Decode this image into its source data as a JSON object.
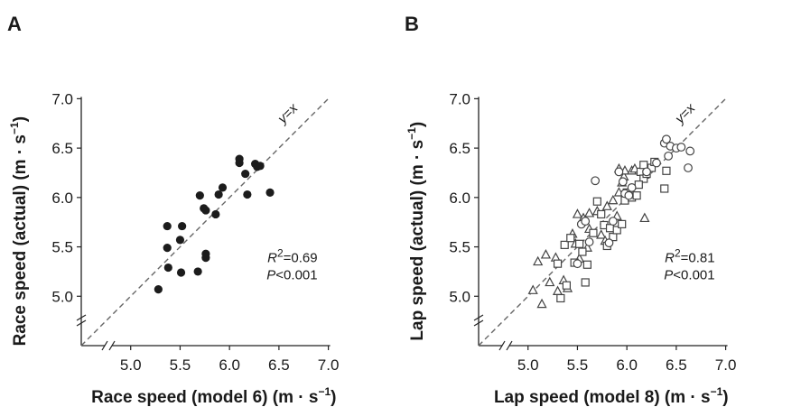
{
  "chart_data": [
    {
      "panel": "A",
      "type": "scatter",
      "xlabel": "Race speed (model 6) (m · s",
      "xlabel_sup": "−1",
      "xlabel_end": ")",
      "ylabel": "Race speed (actual) (m · s",
      "ylabel_sup": "−1",
      "ylabel_end": ")",
      "xlim": [
        4.5,
        7.0
      ],
      "ylim": [
        4.5,
        7.0
      ],
      "x_ticks": [
        "5.0",
        "5.5",
        "6.0",
        "6.5",
        "7.0"
      ],
      "y_ticks": [
        "5.0",
        "5.5",
        "6.0",
        "6.5",
        "7.0"
      ],
      "reference_line": "y=x",
      "stat_r2_label": "R",
      "stat_r2_sup": "2",
      "stat_r2_value": "=0.69",
      "stat_p_label": "P",
      "stat_p_value": "<0.001",
      "grid": false,
      "series": [
        {
          "marker": "filled-circle",
          "points": [
            [
              5.28,
              5.07
            ],
            [
              5.37,
              5.71
            ],
            [
              5.37,
              5.49
            ],
            [
              5.38,
              5.29
            ],
            [
              5.5,
              5.57
            ],
            [
              5.52,
              5.71
            ],
            [
              5.51,
              5.24
            ],
            [
              5.68,
              5.25
            ],
            [
              5.7,
              6.02
            ],
            [
              5.74,
              5.89
            ],
            [
              5.76,
              5.87
            ],
            [
              5.76,
              5.43
            ],
            [
              5.76,
              5.39
            ],
            [
              5.86,
              5.83
            ],
            [
              5.89,
              6.03
            ],
            [
              5.93,
              6.1
            ],
            [
              6.1,
              6.39
            ],
            [
              6.1,
              6.35
            ],
            [
              6.16,
              6.24
            ],
            [
              6.18,
              6.03
            ],
            [
              6.26,
              6.34
            ],
            [
              6.28,
              6.31
            ],
            [
              6.31,
              6.32
            ],
            [
              6.41,
              6.05
            ]
          ]
        }
      ]
    },
    {
      "panel": "B",
      "type": "scatter",
      "xlabel": "Lap speed (model 8) (m · s",
      "xlabel_sup": "−1",
      "xlabel_end": ")",
      "ylabel": "Lap speed (actual) (m · s",
      "ylabel_sup": "−1",
      "ylabel_end": ")",
      "xlim": [
        4.5,
        7.0
      ],
      "ylim": [
        4.5,
        7.0
      ],
      "x_ticks": [
        "5.0",
        "5.5",
        "6.0",
        "6.5",
        "7.0"
      ],
      "y_ticks": [
        "5.0",
        "5.5",
        "6.0",
        "6.5",
        "7.0"
      ],
      "reference_line": "y=x",
      "stat_r2_label": "R",
      "stat_r2_sup": "2",
      "stat_r2_value": "=0.81",
      "stat_p_label": "P",
      "stat_p_value": "<0.001",
      "grid": false,
      "series": [
        {
          "marker": "open-triangle",
          "points": [
            [
              5.05,
              5.06
            ],
            [
              5.1,
              5.35
            ],
            [
              5.14,
              4.92
            ],
            [
              5.18,
              5.42
            ],
            [
              5.22,
              5.14
            ],
            [
              5.28,
              5.39
            ],
            [
              5.3,
              5.05
            ],
            [
              5.36,
              5.16
            ],
            [
              5.4,
              5.08
            ],
            [
              5.45,
              5.63
            ],
            [
              5.48,
              5.53
            ],
            [
              5.5,
              5.83
            ],
            [
              5.52,
              5.38
            ],
            [
              5.56,
              5.79
            ],
            [
              5.6,
              5.49
            ],
            [
              5.62,
              5.68
            ],
            [
              5.7,
              5.86
            ],
            [
              5.74,
              5.62
            ],
            [
              5.78,
              5.56
            ],
            [
              5.8,
              5.91
            ],
            [
              5.86,
              5.97
            ],
            [
              5.92,
              6.29
            ],
            [
              5.92,
              6.05
            ],
            [
              5.95,
              6.15
            ],
            [
              5.97,
              6.21
            ],
            [
              5.98,
              6.27
            ],
            [
              6.05,
              6.27
            ],
            [
              6.18,
              5.79
            ],
            [
              6.18,
              6.23
            ],
            [
              6.08,
              6.29
            ],
            [
              5.62,
              5.84
            ],
            [
              5.9,
              5.81
            ]
          ]
        },
        {
          "marker": "open-square",
          "points": [
            [
              5.3,
              5.33
            ],
            [
              5.33,
              4.98
            ],
            [
              5.37,
              5.52
            ],
            [
              5.39,
              5.11
            ],
            [
              5.43,
              5.59
            ],
            [
              5.47,
              5.34
            ],
            [
              5.52,
              5.53
            ],
            [
              5.58,
              5.14
            ],
            [
              5.6,
              5.32
            ],
            [
              5.66,
              5.64
            ],
            [
              5.7,
              5.96
            ],
            [
              5.74,
              5.83
            ],
            [
              5.77,
              5.72
            ],
            [
              5.8,
              5.51
            ],
            [
              5.83,
              5.69
            ],
            [
              5.86,
              5.6
            ],
            [
              5.9,
              5.67
            ],
            [
              5.95,
              5.73
            ],
            [
              5.98,
              5.97
            ],
            [
              6.0,
              6.05
            ],
            [
              6.05,
              6.0
            ],
            [
              6.1,
              6.02
            ],
            [
              6.14,
              6.26
            ],
            [
              6.17,
              6.33
            ],
            [
              6.17,
              6.19
            ],
            [
              6.2,
              6.24
            ],
            [
              6.25,
              6.3
            ],
            [
              6.38,
              6.09
            ],
            [
              6.4,
              6.27
            ],
            [
              6.28,
              6.36
            ],
            [
              5.55,
              5.45
            ],
            [
              6.12,
              6.13
            ]
          ]
        },
        {
          "marker": "open-circle",
          "points": [
            [
              5.5,
              5.33
            ],
            [
              5.54,
              5.73
            ],
            [
              5.58,
              5.76
            ],
            [
              5.62,
              5.55
            ],
            [
              5.68,
              6.17
            ],
            [
              5.82,
              5.54
            ],
            [
              5.86,
              5.76
            ],
            [
              5.92,
              6.26
            ],
            [
              5.96,
              6.16
            ],
            [
              5.98,
              6.04
            ],
            [
              6.02,
              6.02
            ],
            [
              6.2,
              6.26
            ],
            [
              6.38,
              6.55
            ],
            [
              6.4,
              6.59
            ],
            [
              6.42,
              6.42
            ],
            [
              6.44,
              6.52
            ],
            [
              6.5,
              6.5
            ],
            [
              6.55,
              6.51
            ],
            [
              6.62,
              6.3
            ],
            [
              6.64,
              6.47
            ],
            [
              6.05,
              6.1
            ],
            [
              6.3,
              6.35
            ]
          ]
        }
      ]
    }
  ]
}
